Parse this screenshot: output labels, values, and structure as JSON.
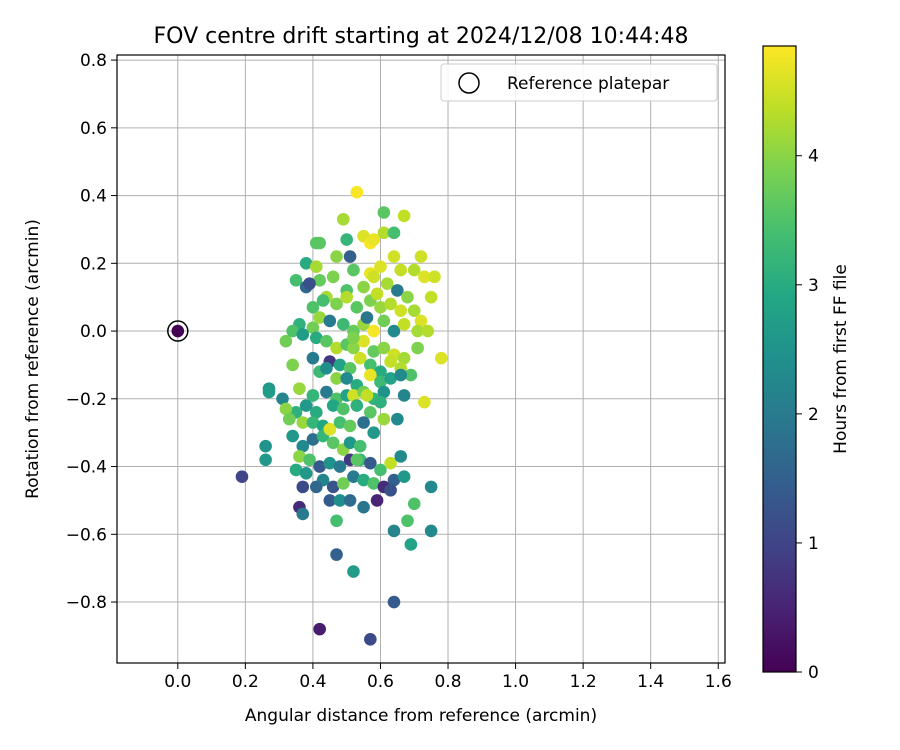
{
  "chart_data": {
    "type": "scatter",
    "title": "FOV centre drift starting at 2024/12/08 10:44:48",
    "xlabel": "Angular distance from reference (arcmin)",
    "ylabel": "Rotation from reference (arcmin)",
    "xlim": [
      -0.18,
      1.62
    ],
    "ylim": [
      -0.98,
      0.815
    ],
    "xticks": [
      0.0,
      0.2,
      0.4,
      0.6,
      0.8,
      1.0,
      1.2,
      1.4,
      1.6
    ],
    "yticks": [
      -0.8,
      -0.6,
      -0.4,
      -0.2,
      0.0,
      0.2,
      0.4,
      0.6,
      0.8
    ],
    "xtick_labels": [
      "0.0",
      "0.2",
      "0.4",
      "0.6",
      "0.8",
      "1.0",
      "1.2",
      "1.4",
      "1.6"
    ],
    "ytick_labels": [
      "−0.8",
      "−0.6",
      "−0.4",
      "−0.2",
      "0.0",
      "0.2",
      "0.4",
      "0.6",
      "0.8"
    ],
    "grid": true,
    "legend": {
      "placement": "top-right",
      "entries": [
        "Reference platepar"
      ]
    },
    "colorbar": {
      "label": "Hours from first FF file",
      "colormap": "viridis",
      "range": [
        0,
        4.85
      ],
      "ticks": [
        0,
        1,
        2,
        3,
        4
      ],
      "tick_labels": [
        "0",
        "1",
        "2",
        "3",
        "4"
      ]
    },
    "reference_point": {
      "x": 0.0,
      "y": 0.0,
      "hours": 0.0
    },
    "series": [
      {
        "points": [
          [
            0.53,
            0.41,
            4.8
          ],
          [
            0.61,
            0.35,
            3.6
          ],
          [
            0.49,
            0.33,
            4.2
          ],
          [
            0.67,
            0.34,
            4.4
          ],
          [
            0.42,
            0.26,
            3.6
          ],
          [
            0.5,
            0.27,
            3.2
          ],
          [
            0.55,
            0.28,
            4.6
          ],
          [
            0.57,
            0.26,
            4.8
          ],
          [
            0.61,
            0.29,
            4.3
          ],
          [
            0.64,
            0.29,
            3.4
          ],
          [
            0.51,
            0.22,
            1.5
          ],
          [
            0.47,
            0.22,
            4.0
          ],
          [
            0.38,
            0.2,
            3.0
          ],
          [
            0.41,
            0.19,
            4.2
          ],
          [
            0.52,
            0.18,
            3.6
          ],
          [
            0.57,
            0.17,
            4.7
          ],
          [
            0.6,
            0.19,
            4.6
          ],
          [
            0.64,
            0.22,
            4.5
          ],
          [
            0.66,
            0.18,
            4.4
          ],
          [
            0.7,
            0.18,
            4.3
          ],
          [
            0.72,
            0.22,
            4.5
          ],
          [
            0.73,
            0.16,
            4.6
          ],
          [
            0.76,
            0.16,
            4.5
          ],
          [
            0.75,
            0.1,
            4.4
          ],
          [
            0.35,
            0.15,
            3.4
          ],
          [
            0.38,
            0.13,
            1.6
          ],
          [
            0.42,
            0.15,
            3.7
          ],
          [
            0.46,
            0.16,
            3.9
          ],
          [
            0.5,
            0.12,
            3.5
          ],
          [
            0.55,
            0.13,
            4.0
          ],
          [
            0.58,
            0.16,
            4.5
          ],
          [
            0.62,
            0.14,
            4.2
          ],
          [
            0.65,
            0.12,
            2.0
          ],
          [
            0.68,
            0.1,
            4.0
          ],
          [
            0.4,
            0.07,
            3.5
          ],
          [
            0.44,
            0.1,
            4.2
          ],
          [
            0.47,
            0.08,
            3.9
          ],
          [
            0.5,
            0.1,
            4.3
          ],
          [
            0.53,
            0.07,
            3.6
          ],
          [
            0.57,
            0.09,
            3.9
          ],
          [
            0.6,
            0.07,
            4.1
          ],
          [
            0.63,
            0.08,
            4.3
          ],
          [
            0.66,
            0.06,
            4.5
          ],
          [
            0.7,
            0.06,
            4.2
          ],
          [
            0.72,
            0.03,
            4.6
          ],
          [
            0.36,
            0.02,
            3.1
          ],
          [
            0.4,
            0.01,
            3.8
          ],
          [
            0.42,
            0.04,
            4.1
          ],
          [
            0.45,
            0.03,
            2.0
          ],
          [
            0.49,
            0.02,
            3.3
          ],
          [
            0.52,
            0.0,
            3.7
          ],
          [
            0.55,
            0.02,
            4.1
          ],
          [
            0.58,
            0.0,
            4.8
          ],
          [
            0.61,
            0.03,
            3.8
          ],
          [
            0.64,
            0.0,
            2.3
          ],
          [
            0.67,
            0.02,
            4.4
          ],
          [
            0.71,
            0.0,
            4.2
          ],
          [
            0.74,
            0.0,
            4.3
          ],
          [
            0.34,
            0.0,
            3.5
          ],
          [
            0.32,
            -0.03,
            3.8
          ],
          [
            0.37,
            -0.01,
            2.7
          ],
          [
            0.41,
            -0.02,
            3.0
          ],
          [
            0.44,
            -0.03,
            3.6
          ],
          [
            0.47,
            -0.05,
            4.3
          ],
          [
            0.5,
            -0.04,
            3.6
          ],
          [
            0.52,
            -0.05,
            4.0
          ],
          [
            0.55,
            -0.03,
            4.6
          ],
          [
            0.58,
            -0.06,
            3.7
          ],
          [
            0.61,
            -0.05,
            4.0
          ],
          [
            0.64,
            -0.07,
            4.5
          ],
          [
            0.67,
            -0.08,
            4.2
          ],
          [
            0.71,
            -0.05,
            3.9
          ],
          [
            0.78,
            -0.08,
            4.6
          ],
          [
            0.4,
            -0.08,
            2.0
          ],
          [
            0.45,
            -0.09,
            0.8
          ],
          [
            0.48,
            -0.1,
            2.8
          ],
          [
            0.51,
            -0.11,
            3.6
          ],
          [
            0.54,
            -0.08,
            4.5
          ],
          [
            0.57,
            -0.1,
            3.4
          ],
          [
            0.6,
            -0.12,
            3.0
          ],
          [
            0.63,
            -0.09,
            4.4
          ],
          [
            0.66,
            -0.11,
            4.3
          ],
          [
            0.69,
            -0.13,
            3.5
          ],
          [
            0.42,
            -0.12,
            3.3
          ],
          [
            0.47,
            -0.14,
            4.0
          ],
          [
            0.5,
            -0.14,
            2.3
          ],
          [
            0.53,
            -0.16,
            3.0
          ],
          [
            0.57,
            -0.13,
            4.7
          ],
          [
            0.6,
            -0.15,
            3.3
          ],
          [
            0.63,
            -0.14,
            2.8
          ],
          [
            0.66,
            -0.13,
            2.3
          ],
          [
            0.36,
            -0.17,
            4.1
          ],
          [
            0.27,
            -0.17,
            2.6
          ],
          [
            0.4,
            -0.19,
            3.6
          ],
          [
            0.44,
            -0.18,
            2.0
          ],
          [
            0.47,
            -0.2,
            3.5
          ],
          [
            0.5,
            -0.19,
            2.8
          ],
          [
            0.52,
            -0.19,
            4.5
          ],
          [
            0.55,
            -0.18,
            3.8
          ],
          [
            0.58,
            -0.2,
            3.2
          ],
          [
            0.61,
            -0.18,
            2.5
          ],
          [
            0.67,
            -0.19,
            2.2
          ],
          [
            0.73,
            -0.21,
            4.6
          ],
          [
            0.27,
            -0.18,
            2.7
          ],
          [
            0.31,
            -0.2,
            2.2
          ],
          [
            0.35,
            -0.24,
            3.1
          ],
          [
            0.38,
            -0.22,
            2.6
          ],
          [
            0.41,
            -0.24,
            3.0
          ],
          [
            0.46,
            -0.22,
            2.9
          ],
          [
            0.49,
            -0.23,
            3.5
          ],
          [
            0.53,
            -0.22,
            3.1
          ],
          [
            0.57,
            -0.24,
            3.6
          ],
          [
            0.6,
            -0.21,
            3.1
          ],
          [
            0.32,
            -0.23,
            4.0
          ],
          [
            0.33,
            -0.26,
            3.8
          ],
          [
            0.37,
            -0.27,
            4.1
          ],
          [
            0.4,
            -0.27,
            3.2
          ],
          [
            0.43,
            -0.28,
            2.9
          ],
          [
            0.45,
            -0.29,
            4.4
          ],
          [
            0.48,
            -0.27,
            3.4
          ],
          [
            0.51,
            -0.28,
            3.7
          ],
          [
            0.55,
            -0.27,
            1.8
          ],
          [
            0.58,
            -0.3,
            2.6
          ],
          [
            0.61,
            -0.26,
            4.1
          ],
          [
            0.65,
            -0.26,
            2.3
          ],
          [
            0.34,
            -0.31,
            2.6
          ],
          [
            0.37,
            -0.34,
            2.3
          ],
          [
            0.4,
            -0.32,
            1.8
          ],
          [
            0.43,
            -0.31,
            3.2
          ],
          [
            0.46,
            -0.33,
            3.6
          ],
          [
            0.49,
            -0.35,
            4.0
          ],
          [
            0.51,
            -0.33,
            2.6
          ],
          [
            0.54,
            -0.34,
            3.4
          ],
          [
            0.36,
            -0.37,
            4.0
          ],
          [
            0.39,
            -0.38,
            3.5
          ],
          [
            0.42,
            -0.4,
            1.4
          ],
          [
            0.45,
            -0.39,
            2.5
          ],
          [
            0.48,
            -0.4,
            2.0
          ],
          [
            0.51,
            -0.38,
            0.8
          ],
          [
            0.54,
            -0.38,
            3.2
          ],
          [
            0.57,
            -0.39,
            1.4
          ],
          [
            0.6,
            -0.41,
            3.4
          ],
          [
            0.63,
            -0.39,
            4.4
          ],
          [
            0.66,
            -0.37,
            2.3
          ],
          [
            0.26,
            -0.34,
            2.5
          ],
          [
            0.26,
            -0.38,
            2.6
          ],
          [
            0.35,
            -0.41,
            3.0
          ],
          [
            0.38,
            -0.42,
            2.6
          ],
          [
            0.43,
            -0.44,
            2.2
          ],
          [
            0.46,
            -0.46,
            1.3
          ],
          [
            0.49,
            -0.45,
            3.8
          ],
          [
            0.52,
            -0.43,
            2.0
          ],
          [
            0.55,
            -0.44,
            3.0
          ],
          [
            0.58,
            -0.45,
            3.5
          ],
          [
            0.61,
            -0.46,
            0.6
          ],
          [
            0.64,
            -0.44,
            1.5
          ],
          [
            0.67,
            -0.43,
            2.6
          ],
          [
            0.19,
            -0.43,
            1.0
          ],
          [
            0.37,
            -0.46,
            1.1
          ],
          [
            0.41,
            -0.46,
            1.6
          ],
          [
            0.45,
            -0.5,
            1.4
          ],
          [
            0.48,
            -0.5,
            2.4
          ],
          [
            0.51,
            -0.5,
            1.7
          ],
          [
            0.55,
            -0.52,
            1.9
          ],
          [
            0.59,
            -0.5,
            0.5
          ],
          [
            0.63,
            -0.47,
            1.2
          ],
          [
            0.7,
            -0.51,
            3.5
          ],
          [
            0.75,
            -0.46,
            2.3
          ],
          [
            0.36,
            -0.52,
            0.6
          ],
          [
            0.37,
            -0.54,
            2.0
          ],
          [
            0.47,
            -0.56,
            3.4
          ],
          [
            0.64,
            -0.59,
            2.2
          ],
          [
            0.68,
            -0.56,
            3.5
          ],
          [
            0.75,
            -0.59,
            2.3
          ],
          [
            0.69,
            -0.63,
            2.8
          ],
          [
            0.47,
            -0.66,
            1.5
          ],
          [
            0.52,
            -0.71,
            2.7
          ],
          [
            0.64,
            -0.8,
            1.4
          ],
          [
            0.42,
            -0.88,
            0.4
          ],
          [
            0.57,
            -0.91,
            1.1
          ],
          [
            0.41,
            0.26,
            3.6
          ],
          [
            0.39,
            0.14,
            1.2
          ],
          [
            0.43,
            0.09,
            3.4
          ],
          [
            0.4,
            -0.19,
            3.2
          ],
          [
            0.44,
            -0.11,
            2.4
          ],
          [
            0.52,
            -0.02,
            3.9
          ],
          [
            0.56,
            0.04,
            1.9
          ],
          [
            0.58,
            0.27,
            4.7
          ],
          [
            0.59,
            0.11,
            4.4
          ],
          [
            0.45,
            -0.29,
            4.6
          ],
          [
            0.34,
            -0.1,
            3.9
          ],
          [
            0.53,
            -0.38,
            3.6
          ],
          [
            0.56,
            -0.19,
            4.4
          ]
        ]
      }
    ]
  }
}
